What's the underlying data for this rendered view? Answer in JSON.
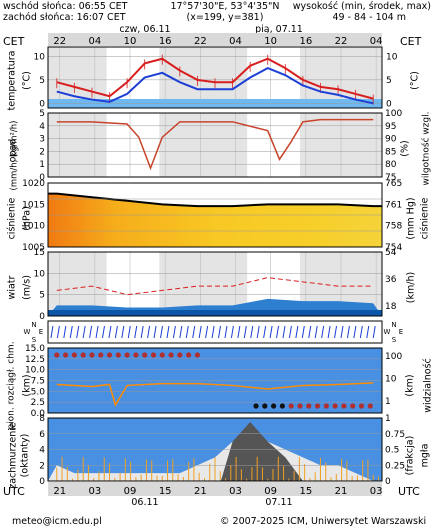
{
  "header": {
    "sunrise": "wschód słońca: 06:55 CET",
    "sunset": "zachód słońca: 16:07 CET",
    "coords": "17°57'30\"E, 53°4'35\"N",
    "grid": "(x=199, y=381)",
    "height_label": "wysokość (min, środek, max)",
    "height_values": "49 - 84 - 104 m"
  },
  "top_axis": {
    "tz_left": "CET",
    "tz_right": "CET",
    "day1": "czw, 06.11",
    "day2": "pią, 07.11",
    "hours": [
      "22",
      "04",
      "10",
      "16",
      "22",
      "04",
      "10",
      "16",
      "22",
      "04"
    ]
  },
  "bottom_axis": {
    "tz_left": "UTC",
    "tz_right": "UTC",
    "hours": [
      "21",
      "03",
      "09",
      "15",
      "21",
      "03",
      "09",
      "15",
      "21",
      "03"
    ],
    "day1": "06.11",
    "day2": "07.11"
  },
  "panels": {
    "temperature": {
      "label": "temperatura",
      "unit_left": "(°C)",
      "unit_right": "(°C)",
      "ticks": [
        "10",
        "5",
        "0"
      ]
    },
    "precip": {
      "label_left": "opad",
      "unit_left": "(mm/h, kg/m²/h)",
      "label_right": "wilgotność wzgl.",
      "unit_right": "(%)",
      "ticks_left": [
        "5",
        "4",
        "3",
        "2",
        "1",
        "0"
      ],
      "ticks_right": [
        "100",
        "95",
        "90",
        "85",
        "80",
        "75"
      ]
    },
    "pressure": {
      "label_left": "ciśnienie",
      "unit_left": "(hPa)",
      "label_right": "ciśnienie",
      "unit_right": "(mm Hg)",
      "ticks_left": [
        "1020",
        "1015",
        "1010",
        "1005"
      ],
      "ticks_right": [
        "765",
        "761",
        "758",
        "754"
      ]
    },
    "wind": {
      "label": "wiatr",
      "unit_left": "(m/s)",
      "unit_right": "(km/h)",
      "ticks_left": [
        "15",
        "10",
        "5",
        "0"
      ],
      "ticks_right": [
        "54",
        "36",
        "18"
      ]
    },
    "wind_dir": {
      "compass": [
        "N",
        "W",
        "E",
        "S"
      ]
    },
    "clouds": {
      "label_left": "pion. rozciągł. chm.",
      "unit_left": "(km)",
      "label_right": "widzialność",
      "unit_right": "(km)",
      "ticks_left": [
        "15.0",
        "12.5",
        "10.0",
        "7.5",
        "5.0",
        "2.5",
        "0.0"
      ],
      "ticks_right": [
        "100",
        "10",
        "1"
      ]
    },
    "cover": {
      "label_left": "zachmurzenie",
      "unit_left": "(oktanty)",
      "label_right": "mgła",
      "unit_right": "(frakcja)",
      "ticks_left": [
        "8",
        "6",
        "4",
        "2",
        "0"
      ],
      "ticks_right": [
        "1",
        "0.75",
        "0.5",
        "0.25",
        "0"
      ]
    }
  },
  "footer": {
    "email": "meteo@icm.edu.pl",
    "copyright": "© 2007-2025 ICM, Uniwersytet Warszawski"
  },
  "colors": {
    "temp": "#d81e1e",
    "dew": "#1d3fd6",
    "humidity": "#c8442a",
    "wind": "#2f7fd0",
    "gust": "#d81e1e",
    "sky": "#4a90e2"
  },
  "chart_data": [
    {
      "type": "line",
      "id": "temperature",
      "x_hours": [
        0,
        3,
        6,
        9,
        12,
        15,
        18,
        21,
        24,
        27,
        30,
        33,
        36,
        39,
        42,
        45,
        48,
        51,
        54
      ],
      "series": [
        {
          "values": [
            4.5,
            3.5,
            2.5,
            1.5,
            4.5,
            8.5,
            9.5,
            7.0,
            5.0,
            4.5,
            4.5,
            8.0,
            9.5,
            7.5,
            5.0,
            3.5,
            3.0,
            2.0,
            1.0
          ]
        },
        {
          "values": [
            2.5,
            1.5,
            0.8,
            0.3,
            2.0,
            5.5,
            6.5,
            4.5,
            3.0,
            3.0,
            3.0,
            5.5,
            7.5,
            6.0,
            3.8,
            2.5,
            1.8,
            0.8,
            0.0
          ]
        }
      ],
      "ylim": [
        -1,
        12
      ]
    },
    {
      "type": "line",
      "id": "humidity",
      "x_hours": [
        0,
        6,
        12,
        14,
        16,
        18,
        21,
        24,
        30,
        36,
        38,
        40,
        42,
        45,
        54
      ],
      "series": [
        {
          "values": [
            97,
            97,
            96,
            90,
            76,
            90,
            97,
            97,
            97,
            93,
            80,
            88,
            97,
            98,
            98
          ]
        }
      ],
      "ylim": [
        72,
        101
      ]
    },
    {
      "type": "line",
      "id": "pressure",
      "x_hours": [
        0,
        6,
        12,
        18,
        24,
        30,
        36,
        42,
        48,
        54
      ],
      "series": [
        {
          "values": [
            1019,
            1018,
            1017,
            1016,
            1015.5,
            1015.5,
            1016,
            1016,
            1016,
            1015.5
          ]
        }
      ],
      "ylim": [
        1004,
        1022
      ]
    },
    {
      "type": "line",
      "id": "wind",
      "x_hours": [
        0,
        6,
        12,
        18,
        24,
        30,
        36,
        42,
        48,
        54
      ],
      "series": [
        {
          "values": [
            2.5,
            2.5,
            2.0,
            2.0,
            2.5,
            2.5,
            4.0,
            3.5,
            3.5,
            3.0
          ]
        },
        {
          "values": [
            6,
            7,
            5,
            6,
            7,
            7,
            9,
            8,
            7,
            7
          ]
        }
      ],
      "ylim": [
        0,
        15
      ]
    },
    {
      "type": "line",
      "id": "visibility",
      "x_hours": [
        0,
        6,
        9,
        10,
        12,
        18,
        24,
        30,
        36,
        42,
        48,
        54
      ],
      "series": [
        {
          "values": [
            10,
            8,
            10,
            1,
            9,
            11,
            11,
            9,
            6,
            9,
            10,
            12
          ]
        }
      ]
    },
    {
      "type": "bar",
      "id": "cloud_cover",
      "x_hours": [
        0,
        3,
        6,
        9,
        12,
        15,
        18,
        21,
        24,
        27,
        30,
        33,
        36,
        39,
        42,
        45,
        48,
        51,
        54
      ],
      "values": [
        2,
        1,
        1,
        1,
        1,
        1,
        1,
        1,
        2,
        3,
        5,
        6,
        5,
        4,
        3,
        2,
        2,
        1,
        0
      ],
      "ylim": [
        0,
        8
      ]
    }
  ]
}
